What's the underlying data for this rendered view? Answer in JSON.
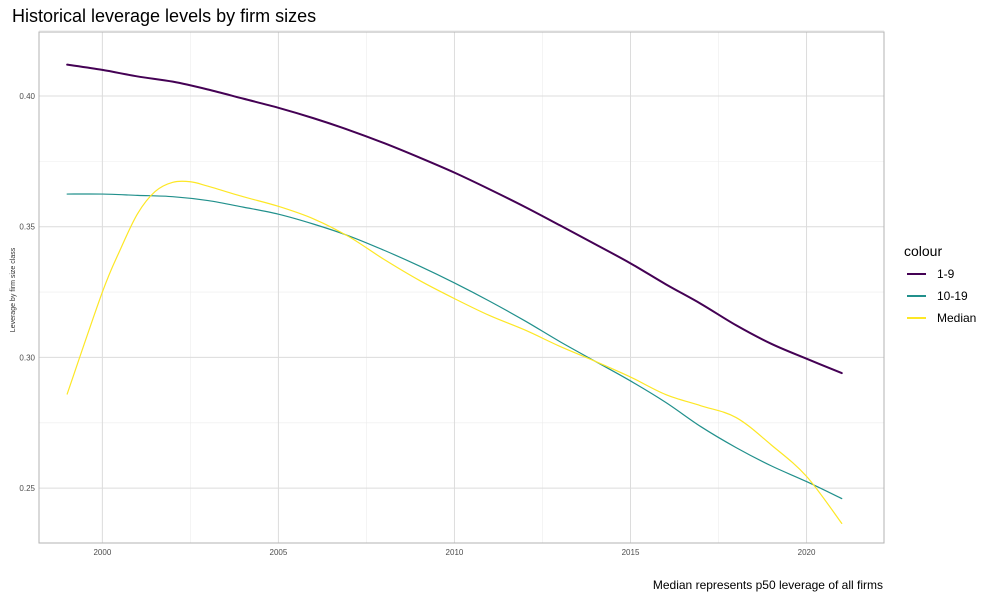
{
  "chart_data": {
    "type": "line",
    "title": "Historical leverage levels by firm sizes",
    "xlabel": "",
    "ylabel": "Leverage by firm size class",
    "caption": "Median represents p50 leverage of all firms",
    "xlim": [
      1998.2,
      2022.2
    ],
    "ylim": [
      0.229,
      0.4245
    ],
    "x_ticks": [
      2000,
      2005,
      2010,
      2015,
      2020
    ],
    "y_ticks": [
      0.25,
      0.3,
      0.35,
      0.4
    ],
    "y_tick_labels": [
      "0.25",
      "0.30",
      "0.35",
      "0.40"
    ],
    "grid": true,
    "legend": {
      "title": "colour",
      "position": "right"
    },
    "series": [
      {
        "name": "1-9",
        "color": "#440154",
        "width": 2,
        "x": [
          1999,
          2000,
          2001,
          2002,
          2003,
          2004,
          2005,
          2006,
          2007,
          2008,
          2009,
          2010,
          2011,
          2012,
          2013,
          2014,
          2015,
          2016,
          2017,
          2018,
          2019,
          2020,
          2021
        ],
        "y": [
          0.412,
          0.41,
          0.4075,
          0.4055,
          0.4025,
          0.399,
          0.3955,
          0.3915,
          0.387,
          0.382,
          0.3765,
          0.3707,
          0.3643,
          0.3576,
          0.3505,
          0.3433,
          0.336,
          0.328,
          0.3205,
          0.3123,
          0.3052,
          0.2995,
          0.294
        ]
      },
      {
        "name": "10-19",
        "color": "#21908C",
        "width": 1.2,
        "x": [
          1999,
          2000,
          2001,
          2002,
          2003,
          2004,
          2005,
          2006,
          2007,
          2008,
          2009,
          2010,
          2011,
          2012,
          2013,
          2014,
          2015,
          2016,
          2017,
          2018,
          2019,
          2020,
          2021
        ],
        "y": [
          0.3625,
          0.3625,
          0.362,
          0.3615,
          0.36,
          0.3575,
          0.3548,
          0.351,
          0.3465,
          0.341,
          0.335,
          0.3285,
          0.3215,
          0.314,
          0.306,
          0.2985,
          0.291,
          0.2828,
          0.2735,
          0.2655,
          0.2585,
          0.2525,
          0.246
        ]
      },
      {
        "name": "Median",
        "color": "#FDE725",
        "width": 1.2,
        "x": [
          1999,
          2000,
          2000.5,
          2001,
          2001.5,
          2002,
          2002.5,
          2003,
          2004,
          2005,
          2006,
          2007,
          2008,
          2009,
          2010,
          2011,
          2012,
          2013,
          2014,
          2015,
          2016,
          2017,
          2018,
          2019,
          2020,
          2021
        ],
        "y": [
          0.286,
          0.325,
          0.341,
          0.355,
          0.3635,
          0.367,
          0.3672,
          0.3655,
          0.3615,
          0.3578,
          0.353,
          0.3462,
          0.3375,
          0.3295,
          0.3225,
          0.316,
          0.3105,
          0.3042,
          0.2985,
          0.2925,
          0.2858,
          0.2815,
          0.277,
          0.2665,
          0.2545,
          0.2365
        ]
      }
    ]
  }
}
